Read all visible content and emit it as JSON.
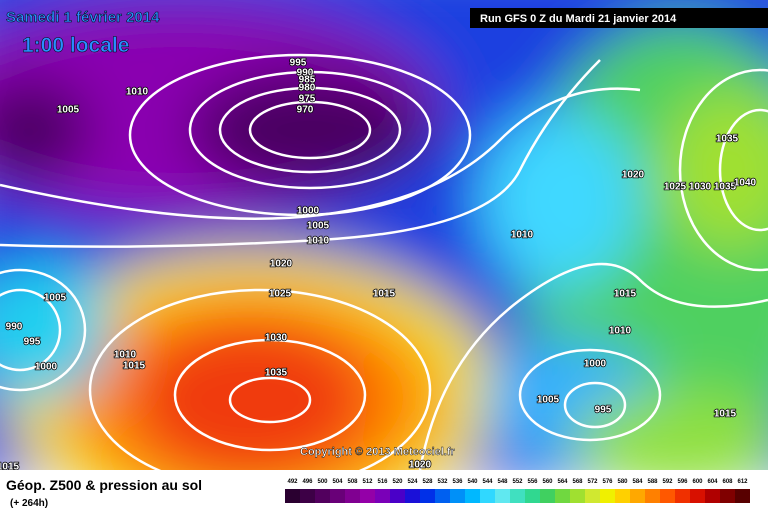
{
  "header": {
    "title": "Samedi 1 février 2014",
    "subtitle": "1:00 locale",
    "run": "Run GFS 0 Z du Mardi 21 janvier 2014"
  },
  "copyright": "Copyright © 2013 Meteociel.fr",
  "isobar_labels": [
    "995",
    "990",
    "985",
    "980",
    "975",
    "970",
    "1010",
    "1005",
    "1000",
    "1005",
    "1010",
    "1020",
    "1025",
    "1015",
    "1005",
    "990",
    "995",
    "1000",
    "1010",
    "1015",
    "1030",
    "1035",
    "1020",
    "1035",
    "1025",
    "1030",
    "1035",
    "1040",
    "1010",
    "1015",
    "1010",
    "1000",
    "1005",
    "995",
    "1015",
    "1020",
    "1015"
  ],
  "legend": {
    "title": "Géop. Z500 & pression au sol",
    "lead": "(+ 264h)",
    "labels": [
      492,
      496,
      500,
      504,
      508,
      512,
      516,
      520,
      524,
      528,
      532,
      536,
      540,
      544,
      548,
      552,
      556,
      560,
      564,
      568,
      572,
      576,
      580,
      584,
      588,
      592,
      596,
      600,
      604,
      608,
      612
    ],
    "colors": [
      "#2a0030",
      "#3d0046",
      "#52005e",
      "#690078",
      "#800091",
      "#9400a8",
      "#7a00b8",
      "#4a00c8",
      "#1a10d8",
      "#0030e8",
      "#0060f0",
      "#0090f8",
      "#00b8ff",
      "#30d8ff",
      "#60e8f0",
      "#40e0c0",
      "#30d890",
      "#40d060",
      "#70d840",
      "#a0e030",
      "#d0e830",
      "#f0f000",
      "#ffd000",
      "#ffa800",
      "#ff8000",
      "#ff5800",
      "#f03000",
      "#d81000",
      "#b00000",
      "#800000",
      "#580000"
    ]
  }
}
